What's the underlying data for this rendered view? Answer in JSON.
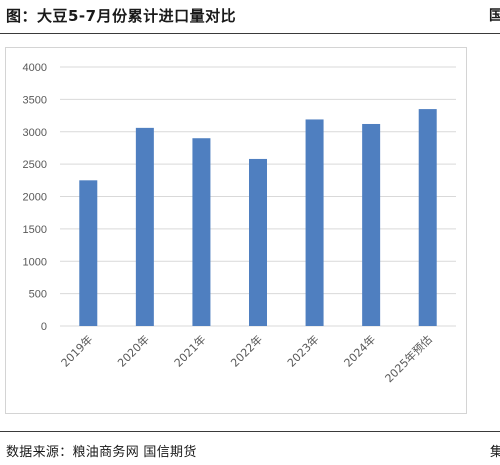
{
  "header": {
    "title": "图：大豆5-7月份累计进口量对比",
    "corner_mark": "国"
  },
  "footer": {
    "source": "数据来源：粮油商务网  国信期货",
    "corner_mark": "集"
  },
  "chart_data": {
    "type": "bar",
    "categories": [
      "2019年",
      "2020年",
      "2021年",
      "2022年",
      "2023年",
      "2024年",
      "2025年预估"
    ],
    "values": [
      2250,
      3060,
      2900,
      2580,
      3190,
      3120,
      3350
    ],
    "title": "",
    "xlabel": "",
    "ylabel": "",
    "ylim": [
      0,
      4000
    ],
    "yticks": [
      0,
      500,
      1000,
      1500,
      2000,
      2500,
      3000,
      3500,
      4000
    ],
    "grid": true,
    "legend": "none",
    "bar_color": "#4f7fc0",
    "grid_color": "#d9d9d9"
  }
}
